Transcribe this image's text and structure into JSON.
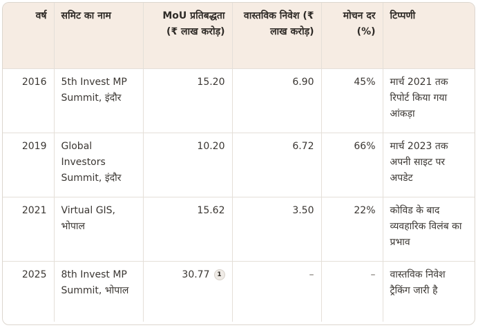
{
  "table": {
    "headers": {
      "year": "वर्ष",
      "summit": "समिट का नाम",
      "mou": "MoU प्रतिबद्धता (₹ लाख करोड़)",
      "actual": "वास्तविक निवेश (₹ लाख करोड़)",
      "conversion": "मोचन दर (%)",
      "note": "टिप्पणी"
    },
    "rows": [
      {
        "year": "2016",
        "summit": "5th Invest MP Summit, इंदौर",
        "mou": "15.20",
        "actual": "6.90",
        "conversion": "45%",
        "note": "मार्च 2021 तक रिपोर्ट किया गया आंकड़ा"
      },
      {
        "year": "2019",
        "summit": "Global Investors Summit, इंदौर",
        "mou": "10.20",
        "actual": "6.72",
        "conversion": "66%",
        "note": "मार्च 2023 तक अपनी साइट पर अपडेट"
      },
      {
        "year": "2021",
        "summit": "Virtual GIS, भोपाल",
        "mou": "15.62",
        "actual": "3.50",
        "conversion": "22%",
        "note": "कोविड के बाद व्यवहारिक विलंब का प्रभाव"
      },
      {
        "year": "2025",
        "summit": "8th Invest MP Summit, भोपाल",
        "mou": "30.77",
        "mou_footnote": "1",
        "actual": "–",
        "conversion": "–",
        "note": "वास्तविक निवेश ट्रैकिंग जारी है"
      }
    ]
  }
}
